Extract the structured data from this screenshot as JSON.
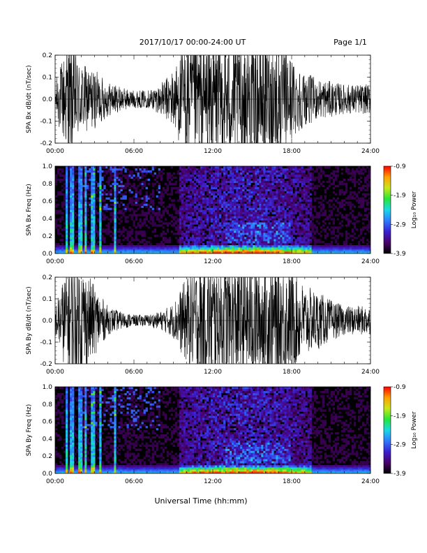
{
  "header": {
    "date_range": "2017/10/17   00:00-24:00 UT",
    "page": "Page 1/1"
  },
  "footer": {
    "xlabel": "Universal Time (hh:mm)"
  },
  "colors": {
    "spectrogram_scale": [
      "#000000",
      "#4a006a",
      "#3a1fd0",
      "#2e7bff",
      "#19d9e6",
      "#27e63a",
      "#c8e619",
      "#ffa000",
      "#ff0000"
    ]
  },
  "chart_data": [
    {
      "type": "line",
      "panel": "bx-waveform",
      "ylabel": "SPA Bx dB/dt (nT/sec)",
      "xlim": [
        "00:00",
        "24:00"
      ],
      "ylim": [
        -0.2,
        0.2
      ],
      "xticks": [
        "00:00",
        "06:00",
        "12:00",
        "18:00",
        "24:00"
      ],
      "yticks": [
        "-0.2",
        "-0.1",
        "0.0",
        "0.1",
        "0.2"
      ],
      "ytick_values": [
        -0.2,
        -0.1,
        0.0,
        0.1,
        0.2
      ],
      "envelope_hours": [
        0,
        1,
        2,
        3,
        4,
        5,
        6,
        7,
        8,
        9,
        10,
        11,
        12,
        13,
        14,
        15,
        16,
        17,
        18,
        19,
        20,
        21,
        22,
        23,
        24
      ],
      "envelope_amplitude": [
        0.06,
        0.2,
        0.12,
        0.1,
        0.06,
        0.04,
        0.03,
        0.03,
        0.05,
        0.1,
        0.2,
        0.2,
        0.2,
        0.2,
        0.2,
        0.2,
        0.2,
        0.2,
        0.14,
        0.09,
        0.07,
        0.06,
        0.05,
        0.05,
        0.05
      ]
    },
    {
      "type": "heatmap",
      "panel": "bx-spectrogram",
      "ylabel": "SPA Bx Freq (Hz)",
      "colorbar_label": "Log₁₀ Power",
      "colorbar_ticks": [
        "-0.9",
        "-1.9",
        "-2.9",
        "-3.9"
      ],
      "colorbar_range": [
        -3.9,
        -0.9
      ],
      "xlim": [
        "00:00",
        "24:00"
      ],
      "ylim": [
        0.0,
        1.0
      ],
      "xticks": [
        "00:00",
        "06:00",
        "12:00",
        "18:00",
        "24:00"
      ],
      "yticks": [
        "0.0",
        "0.2",
        "0.4",
        "0.6",
        "0.8",
        "1.0"
      ],
      "ytick_values": [
        0.0,
        0.2,
        0.4,
        0.6,
        0.8,
        1.0
      ]
    },
    {
      "type": "line",
      "panel": "by-waveform",
      "ylabel": "SPA By dB/dt (nT/sec)",
      "xlim": [
        "00:00",
        "24:00"
      ],
      "ylim": [
        -0.2,
        0.2
      ],
      "xticks": [
        "00:00",
        "06:00",
        "12:00",
        "18:00",
        "24:00"
      ],
      "yticks": [
        "-0.2",
        "-0.1",
        "0.0",
        "0.1",
        "0.2"
      ],
      "ytick_values": [
        -0.2,
        -0.1,
        0.0,
        0.1,
        0.2
      ],
      "envelope_hours": [
        0,
        1,
        2,
        3,
        4,
        5,
        6,
        7,
        8,
        9,
        10,
        11,
        12,
        13,
        14,
        15,
        16,
        17,
        18,
        19,
        20,
        21,
        22,
        23,
        24
      ],
      "envelope_amplitude": [
        0.05,
        0.2,
        0.2,
        0.12,
        0.05,
        0.03,
        0.02,
        0.02,
        0.03,
        0.06,
        0.15,
        0.2,
        0.2,
        0.2,
        0.2,
        0.2,
        0.2,
        0.2,
        0.18,
        0.12,
        0.1,
        0.07,
        0.05,
        0.05,
        0.05
      ]
    },
    {
      "type": "heatmap",
      "panel": "by-spectrogram",
      "ylabel": "SPA By Freq (Hz)",
      "colorbar_label": "Log₁₀ Power",
      "colorbar_ticks": [
        "-0.9",
        "-1.9",
        "-2.9",
        "-3.9"
      ],
      "colorbar_range": [
        -3.9,
        -0.9
      ],
      "xlim": [
        "00:00",
        "24:00"
      ],
      "ylim": [
        0.0,
        1.0
      ],
      "xticks": [
        "00:00",
        "06:00",
        "12:00",
        "18:00",
        "24:00"
      ],
      "yticks": [
        "0.0",
        "0.2",
        "0.4",
        "0.6",
        "0.8",
        "1.0"
      ],
      "ytick_values": [
        0.0,
        0.2,
        0.4,
        0.6,
        0.8,
        1.0
      ]
    }
  ]
}
